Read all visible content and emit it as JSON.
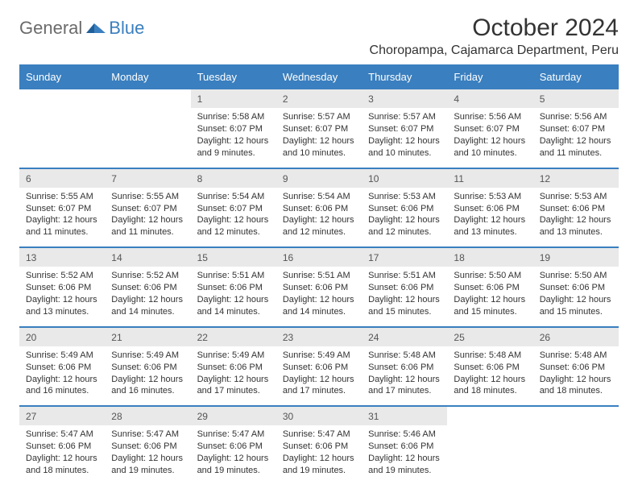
{
  "branding": {
    "word1": "General",
    "word2": "Blue"
  },
  "title": "October 2024",
  "location": "Choropampa, Cajamarca Department, Peru",
  "colors": {
    "accent": "#3a7fbf",
    "header_bg": "#3a7fbf",
    "daynum_bg": "#e9e9e9",
    "text": "#333333"
  },
  "weekday_labels": [
    "Sunday",
    "Monday",
    "Tuesday",
    "Wednesday",
    "Thursday",
    "Friday",
    "Saturday"
  ],
  "weeks": [
    {
      "nums": [
        "",
        "",
        "1",
        "2",
        "3",
        "4",
        "5"
      ],
      "cells": [
        null,
        null,
        {
          "sunrise": "Sunrise: 5:58 AM",
          "sunset": "Sunset: 6:07 PM",
          "day_a": "Daylight: 12 hours",
          "day_b": "and 9 minutes."
        },
        {
          "sunrise": "Sunrise: 5:57 AM",
          "sunset": "Sunset: 6:07 PM",
          "day_a": "Daylight: 12 hours",
          "day_b": "and 10 minutes."
        },
        {
          "sunrise": "Sunrise: 5:57 AM",
          "sunset": "Sunset: 6:07 PM",
          "day_a": "Daylight: 12 hours",
          "day_b": "and 10 minutes."
        },
        {
          "sunrise": "Sunrise: 5:56 AM",
          "sunset": "Sunset: 6:07 PM",
          "day_a": "Daylight: 12 hours",
          "day_b": "and 10 minutes."
        },
        {
          "sunrise": "Sunrise: 5:56 AM",
          "sunset": "Sunset: 6:07 PM",
          "day_a": "Daylight: 12 hours",
          "day_b": "and 11 minutes."
        }
      ]
    },
    {
      "nums": [
        "6",
        "7",
        "8",
        "9",
        "10",
        "11",
        "12"
      ],
      "cells": [
        {
          "sunrise": "Sunrise: 5:55 AM",
          "sunset": "Sunset: 6:07 PM",
          "day_a": "Daylight: 12 hours",
          "day_b": "and 11 minutes."
        },
        {
          "sunrise": "Sunrise: 5:55 AM",
          "sunset": "Sunset: 6:07 PM",
          "day_a": "Daylight: 12 hours",
          "day_b": "and 11 minutes."
        },
        {
          "sunrise": "Sunrise: 5:54 AM",
          "sunset": "Sunset: 6:07 PM",
          "day_a": "Daylight: 12 hours",
          "day_b": "and 12 minutes."
        },
        {
          "sunrise": "Sunrise: 5:54 AM",
          "sunset": "Sunset: 6:06 PM",
          "day_a": "Daylight: 12 hours",
          "day_b": "and 12 minutes."
        },
        {
          "sunrise": "Sunrise: 5:53 AM",
          "sunset": "Sunset: 6:06 PM",
          "day_a": "Daylight: 12 hours",
          "day_b": "and 12 minutes."
        },
        {
          "sunrise": "Sunrise: 5:53 AM",
          "sunset": "Sunset: 6:06 PM",
          "day_a": "Daylight: 12 hours",
          "day_b": "and 13 minutes."
        },
        {
          "sunrise": "Sunrise: 5:53 AM",
          "sunset": "Sunset: 6:06 PM",
          "day_a": "Daylight: 12 hours",
          "day_b": "and 13 minutes."
        }
      ]
    },
    {
      "nums": [
        "13",
        "14",
        "15",
        "16",
        "17",
        "18",
        "19"
      ],
      "cells": [
        {
          "sunrise": "Sunrise: 5:52 AM",
          "sunset": "Sunset: 6:06 PM",
          "day_a": "Daylight: 12 hours",
          "day_b": "and 13 minutes."
        },
        {
          "sunrise": "Sunrise: 5:52 AM",
          "sunset": "Sunset: 6:06 PM",
          "day_a": "Daylight: 12 hours",
          "day_b": "and 14 minutes."
        },
        {
          "sunrise": "Sunrise: 5:51 AM",
          "sunset": "Sunset: 6:06 PM",
          "day_a": "Daylight: 12 hours",
          "day_b": "and 14 minutes."
        },
        {
          "sunrise": "Sunrise: 5:51 AM",
          "sunset": "Sunset: 6:06 PM",
          "day_a": "Daylight: 12 hours",
          "day_b": "and 14 minutes."
        },
        {
          "sunrise": "Sunrise: 5:51 AM",
          "sunset": "Sunset: 6:06 PM",
          "day_a": "Daylight: 12 hours",
          "day_b": "and 15 minutes."
        },
        {
          "sunrise": "Sunrise: 5:50 AM",
          "sunset": "Sunset: 6:06 PM",
          "day_a": "Daylight: 12 hours",
          "day_b": "and 15 minutes."
        },
        {
          "sunrise": "Sunrise: 5:50 AM",
          "sunset": "Sunset: 6:06 PM",
          "day_a": "Daylight: 12 hours",
          "day_b": "and 15 minutes."
        }
      ]
    },
    {
      "nums": [
        "20",
        "21",
        "22",
        "23",
        "24",
        "25",
        "26"
      ],
      "cells": [
        {
          "sunrise": "Sunrise: 5:49 AM",
          "sunset": "Sunset: 6:06 PM",
          "day_a": "Daylight: 12 hours",
          "day_b": "and 16 minutes."
        },
        {
          "sunrise": "Sunrise: 5:49 AM",
          "sunset": "Sunset: 6:06 PM",
          "day_a": "Daylight: 12 hours",
          "day_b": "and 16 minutes."
        },
        {
          "sunrise": "Sunrise: 5:49 AM",
          "sunset": "Sunset: 6:06 PM",
          "day_a": "Daylight: 12 hours",
          "day_b": "and 17 minutes."
        },
        {
          "sunrise": "Sunrise: 5:49 AM",
          "sunset": "Sunset: 6:06 PM",
          "day_a": "Daylight: 12 hours",
          "day_b": "and 17 minutes."
        },
        {
          "sunrise": "Sunrise: 5:48 AM",
          "sunset": "Sunset: 6:06 PM",
          "day_a": "Daylight: 12 hours",
          "day_b": "and 17 minutes."
        },
        {
          "sunrise": "Sunrise: 5:48 AM",
          "sunset": "Sunset: 6:06 PM",
          "day_a": "Daylight: 12 hours",
          "day_b": "and 18 minutes."
        },
        {
          "sunrise": "Sunrise: 5:48 AM",
          "sunset": "Sunset: 6:06 PM",
          "day_a": "Daylight: 12 hours",
          "day_b": "and 18 minutes."
        }
      ]
    },
    {
      "nums": [
        "27",
        "28",
        "29",
        "30",
        "31",
        "",
        ""
      ],
      "cells": [
        {
          "sunrise": "Sunrise: 5:47 AM",
          "sunset": "Sunset: 6:06 PM",
          "day_a": "Daylight: 12 hours",
          "day_b": "and 18 minutes."
        },
        {
          "sunrise": "Sunrise: 5:47 AM",
          "sunset": "Sunset: 6:06 PM",
          "day_a": "Daylight: 12 hours",
          "day_b": "and 19 minutes."
        },
        {
          "sunrise": "Sunrise: 5:47 AM",
          "sunset": "Sunset: 6:06 PM",
          "day_a": "Daylight: 12 hours",
          "day_b": "and 19 minutes."
        },
        {
          "sunrise": "Sunrise: 5:47 AM",
          "sunset": "Sunset: 6:06 PM",
          "day_a": "Daylight: 12 hours",
          "day_b": "and 19 minutes."
        },
        {
          "sunrise": "Sunrise: 5:46 AM",
          "sunset": "Sunset: 6:06 PM",
          "day_a": "Daylight: 12 hours",
          "day_b": "and 19 minutes."
        },
        null,
        null
      ]
    }
  ]
}
